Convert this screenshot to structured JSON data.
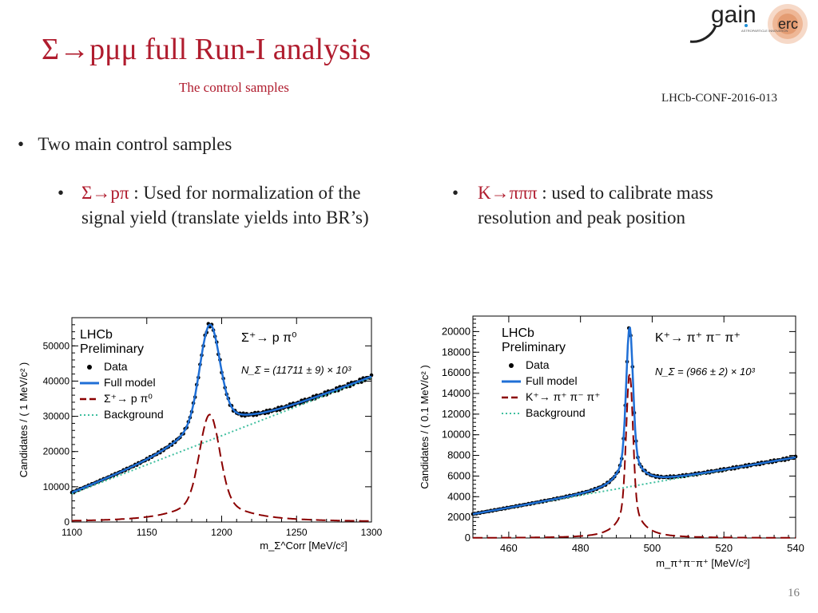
{
  "slide": {
    "title": "Σ→pμμ full Run-I analysis",
    "subtitle": "The control samples",
    "reference": "LHCb-CONF-2016-013",
    "page_number": "16",
    "logo": {
      "gain": "gain",
      "erc": "erc",
      "gain_tagline": "ASTROPARTICLE INNOVATION"
    },
    "bullet1": "Two main  control samples",
    "bullet2_channel": "Σ→pπ",
    "bullet2_text": " : Used for normalization of the signal yield (translate yields into BR’s)",
    "bullet3_channel": "K→πππ",
    "bullet3_text": " : used to calibrate mass resolution and peak position",
    "bullet_glyph": "•"
  },
  "chart_data": [
    {
      "type": "line",
      "experiment": "LHCb",
      "status": "Preliminary",
      "decay": "Σ⁺→ p π⁰",
      "yield": "N_Σ = (11711 ± 9) × 10³",
      "xlabel": "m_Σ^Corr [MeV/c²]",
      "ylabel": "Candidates / ( 1 MeV/c² )",
      "xlim": [
        1100,
        1300
      ],
      "ylim": [
        0,
        58000
      ],
      "xticks": [
        1100,
        1150,
        1200,
        1250,
        1300
      ],
      "yticks": [
        0,
        10000,
        20000,
        30000,
        40000,
        50000
      ],
      "legend": [
        "Data",
        "Full model",
        "Σ⁺→ p π⁰",
        "Background"
      ],
      "legend_placement": "top-left",
      "peak": {
        "mean": 1192,
        "signal_height": 30500,
        "total_height": 56000
      },
      "background": {
        "start": 8000,
        "end": 41000
      },
      "colors": {
        "data": "#000000",
        "full": "#1f6fd6",
        "signal": "#8b0000",
        "bkg": "#3fbf9f"
      }
    },
    {
      "type": "line",
      "experiment": "LHCb",
      "status": "Preliminary",
      "decay": "K⁺→ π⁺ π⁻ π⁺",
      "yield": "N_Σ = (966 ± 2) × 10³",
      "xlabel": "m_π⁺π⁻π⁺ [MeV/c²]",
      "ylabel": "Candidates / ( 0.1 MeV/c² )",
      "xlim": [
        450,
        540
      ],
      "ylim": [
        0,
        21500
      ],
      "xticks": [
        460,
        480,
        500,
        520,
        540
      ],
      "yticks": [
        0,
        2000,
        4000,
        6000,
        8000,
        10000,
        12000,
        14000,
        16000,
        18000,
        20000
      ],
      "legend": [
        "Data",
        "Full model",
        "K⁺→ π⁺ π⁻ π⁺",
        "Background"
      ],
      "legend_placement": "top-left",
      "peak": {
        "mean": 493.7,
        "signal_height": 16000,
        "total_height": 20500
      },
      "background": {
        "start": 2300,
        "end": 7800
      },
      "colors": {
        "data": "#000000",
        "full": "#1f6fd6",
        "signal": "#8b0000",
        "bkg": "#3fbf9f"
      }
    }
  ]
}
